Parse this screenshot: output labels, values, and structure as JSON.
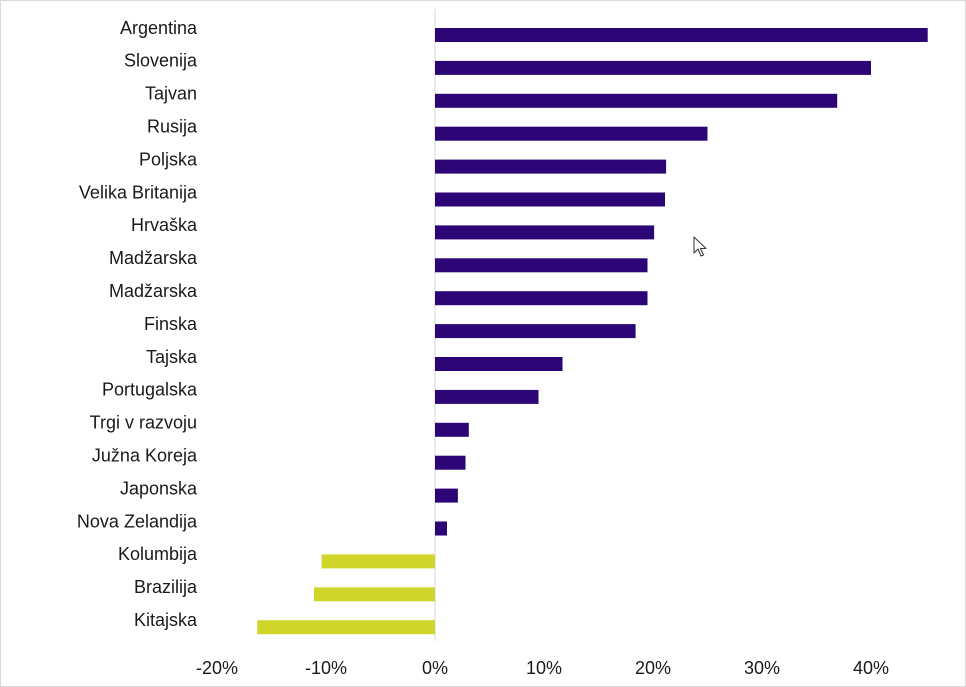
{
  "chart_data": {
    "type": "bar",
    "orientation": "horizontal",
    "categories": [
      "Argentina",
      "Slovenija",
      "Tajvan",
      "Rusija",
      "Poljska",
      "Velika Britanija",
      "Hrvaška",
      "Madžarska",
      "Madžarska",
      "Finska",
      "Tajska",
      "Portugalska",
      "Trgi v razvoju",
      "Južna Koreja",
      "Japonska",
      "Nova Zelandija",
      "Kolumbija",
      "Brazilija",
      "Kitajska"
    ],
    "values": [
      45.2,
      40.0,
      36.9,
      25.0,
      21.2,
      21.1,
      20.1,
      19.5,
      19.5,
      18.4,
      11.7,
      9.5,
      3.1,
      2.8,
      2.1,
      1.1,
      -10.4,
      -11.1,
      -16.3
    ],
    "xlim": [
      -20,
      45
    ],
    "ticks": [
      {
        "value": -20,
        "label": "-20%"
      },
      {
        "value": -10,
        "label": "-10%"
      },
      {
        "value": 0,
        "label": "0%"
      },
      {
        "value": 10,
        "label": "10%"
      },
      {
        "value": 20,
        "label": "20%"
      },
      {
        "value": 30,
        "label": "30%"
      },
      {
        "value": 40,
        "label": "40%"
      }
    ],
    "colors": {
      "positive": "#2c0577",
      "negative": "#d0d52a",
      "axis": "#d9d9d9"
    },
    "grid": false,
    "legend": "none"
  },
  "cursor": {
    "icon": "arrow-cursor-icon"
  }
}
